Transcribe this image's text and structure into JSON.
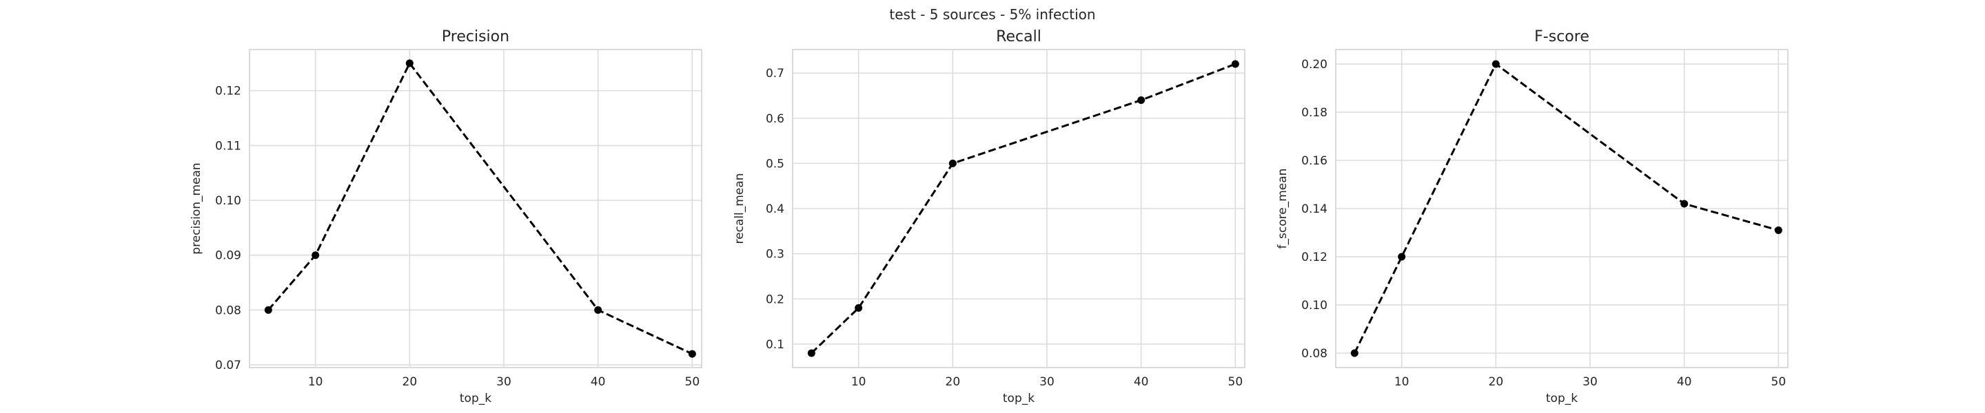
{
  "figure": {
    "suptitle": "test - 5 sources - 5% infection"
  },
  "chart_data": [
    {
      "type": "line",
      "title": "Precision",
      "xlabel": "top_k",
      "ylabel": "precision_mean",
      "x": [
        5,
        10,
        20,
        40,
        50
      ],
      "y": [
        0.08,
        0.09,
        0.125,
        0.08,
        0.072
      ],
      "xlim": [
        3,
        51
      ],
      "ylim": [
        0.0695,
        0.1275
      ],
      "xticks": [
        10,
        20,
        30,
        40,
        50
      ],
      "yticks": [
        0.07,
        0.08,
        0.09,
        0.1,
        0.11,
        0.12
      ],
      "ytick_decimals": 2,
      "grid": true,
      "line_style": "dashed",
      "marker": "circle",
      "color": "#000000"
    },
    {
      "type": "line",
      "title": "Recall",
      "xlabel": "top_k",
      "ylabel": "recall_mean",
      "x": [
        5,
        10,
        20,
        40,
        50
      ],
      "y": [
        0.08,
        0.18,
        0.5,
        0.64,
        0.72
      ],
      "xlim": [
        3,
        51
      ],
      "ylim": [
        0.048,
        0.752
      ],
      "xticks": [
        10,
        20,
        30,
        40,
        50
      ],
      "yticks": [
        0.1,
        0.2,
        0.3,
        0.4,
        0.5,
        0.6,
        0.7
      ],
      "ytick_decimals": 1,
      "grid": true,
      "line_style": "dashed",
      "marker": "circle",
      "color": "#000000"
    },
    {
      "type": "line",
      "title": "F-score",
      "xlabel": "top_k",
      "ylabel": "f_score_mean",
      "x": [
        5,
        10,
        20,
        40,
        50
      ],
      "y": [
        0.08,
        0.12,
        0.2,
        0.142,
        0.131
      ],
      "xlim": [
        3,
        51
      ],
      "ylim": [
        0.074,
        0.206
      ],
      "xticks": [
        10,
        20,
        30,
        40,
        50
      ],
      "yticks": [
        0.08,
        0.1,
        0.12,
        0.14,
        0.16,
        0.18,
        0.2
      ],
      "ytick_decimals": 2,
      "grid": true,
      "line_style": "dashed",
      "marker": "circle",
      "color": "#000000"
    }
  ]
}
